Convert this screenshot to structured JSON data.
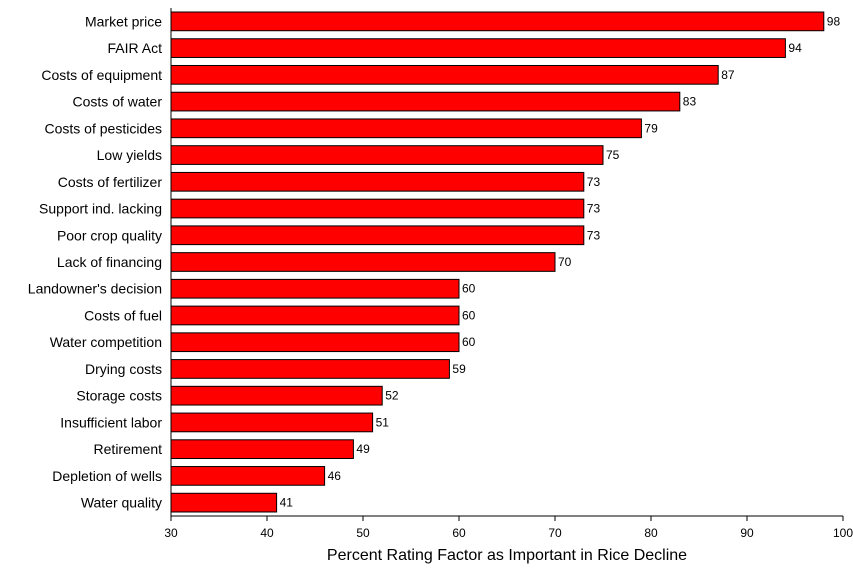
{
  "chart_data": {
    "type": "bar",
    "orientation": "horizontal",
    "categories": [
      "Market price",
      "FAIR Act",
      "Costs of equipment",
      "Costs of water",
      "Costs of pesticides",
      "Low yields",
      "Costs of fertilizer",
      "Support ind. lacking",
      "Poor crop quality",
      "Lack of financing",
      "Landowner's decision",
      "Costs of fuel",
      "Water competition",
      "Drying costs",
      "Storage costs",
      "Insufficient labor",
      "Retirement",
      "Depletion of wells",
      "Water quality"
    ],
    "values": [
      98,
      94,
      87,
      83,
      79,
      75,
      73,
      73,
      73,
      70,
      60,
      60,
      60,
      59,
      52,
      51,
      49,
      46,
      41
    ],
    "title": "",
    "xlabel": "Percent Rating Factor as Important in Rice Decline",
    "ylabel": "",
    "xlim": [
      30,
      100
    ],
    "xticks": [
      30,
      40,
      50,
      60,
      70,
      80,
      90,
      100
    ],
    "bar_color": "#ff0000",
    "bar_outline_color": "#000000",
    "data_labels": true,
    "grid": false,
    "legend": false
  }
}
